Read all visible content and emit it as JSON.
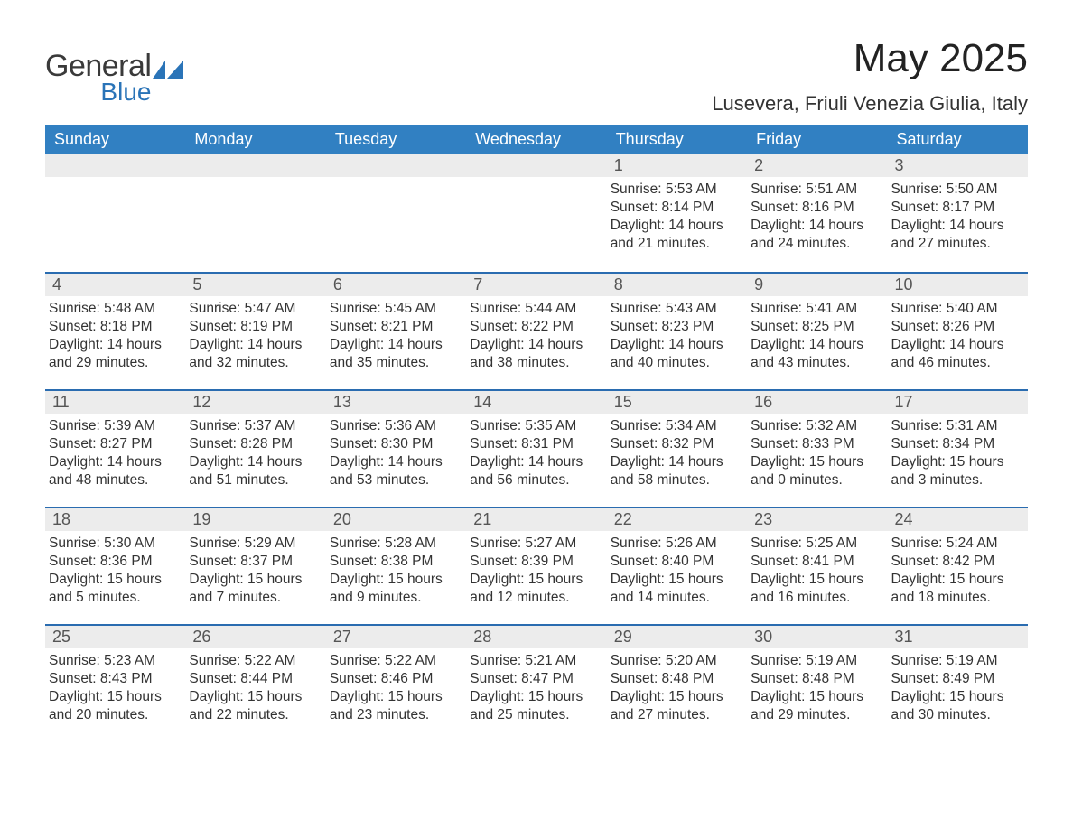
{
  "logo": {
    "word1": "General",
    "word2": "Blue"
  },
  "title": "May 2025",
  "location": "Lusevera, Friuli Venezia Giulia, Italy",
  "colors": {
    "header_bg": "#3180c2",
    "accent": "#2a6cb0",
    "row_gray": "#ececec",
    "text": "#333333"
  },
  "weekdays": [
    "Sunday",
    "Monday",
    "Tuesday",
    "Wednesday",
    "Thursday",
    "Friday",
    "Saturday"
  ],
  "leading_blanks": 4,
  "days": [
    {
      "n": 1,
      "sunrise": "5:53 AM",
      "sunset": "8:14 PM",
      "daylight": "14 hours and 21 minutes."
    },
    {
      "n": 2,
      "sunrise": "5:51 AM",
      "sunset": "8:16 PM",
      "daylight": "14 hours and 24 minutes."
    },
    {
      "n": 3,
      "sunrise": "5:50 AM",
      "sunset": "8:17 PM",
      "daylight": "14 hours and 27 minutes."
    },
    {
      "n": 4,
      "sunrise": "5:48 AM",
      "sunset": "8:18 PM",
      "daylight": "14 hours and 29 minutes."
    },
    {
      "n": 5,
      "sunrise": "5:47 AM",
      "sunset": "8:19 PM",
      "daylight": "14 hours and 32 minutes."
    },
    {
      "n": 6,
      "sunrise": "5:45 AM",
      "sunset": "8:21 PM",
      "daylight": "14 hours and 35 minutes."
    },
    {
      "n": 7,
      "sunrise": "5:44 AM",
      "sunset": "8:22 PM",
      "daylight": "14 hours and 38 minutes."
    },
    {
      "n": 8,
      "sunrise": "5:43 AM",
      "sunset": "8:23 PM",
      "daylight": "14 hours and 40 minutes."
    },
    {
      "n": 9,
      "sunrise": "5:41 AM",
      "sunset": "8:25 PM",
      "daylight": "14 hours and 43 minutes."
    },
    {
      "n": 10,
      "sunrise": "5:40 AM",
      "sunset": "8:26 PM",
      "daylight": "14 hours and 46 minutes."
    },
    {
      "n": 11,
      "sunrise": "5:39 AM",
      "sunset": "8:27 PM",
      "daylight": "14 hours and 48 minutes."
    },
    {
      "n": 12,
      "sunrise": "5:37 AM",
      "sunset": "8:28 PM",
      "daylight": "14 hours and 51 minutes."
    },
    {
      "n": 13,
      "sunrise": "5:36 AM",
      "sunset": "8:30 PM",
      "daylight": "14 hours and 53 minutes."
    },
    {
      "n": 14,
      "sunrise": "5:35 AM",
      "sunset": "8:31 PM",
      "daylight": "14 hours and 56 minutes."
    },
    {
      "n": 15,
      "sunrise": "5:34 AM",
      "sunset": "8:32 PM",
      "daylight": "14 hours and 58 minutes."
    },
    {
      "n": 16,
      "sunrise": "5:32 AM",
      "sunset": "8:33 PM",
      "daylight": "15 hours and 0 minutes."
    },
    {
      "n": 17,
      "sunrise": "5:31 AM",
      "sunset": "8:34 PM",
      "daylight": "15 hours and 3 minutes."
    },
    {
      "n": 18,
      "sunrise": "5:30 AM",
      "sunset": "8:36 PM",
      "daylight": "15 hours and 5 minutes."
    },
    {
      "n": 19,
      "sunrise": "5:29 AM",
      "sunset": "8:37 PM",
      "daylight": "15 hours and 7 minutes."
    },
    {
      "n": 20,
      "sunrise": "5:28 AM",
      "sunset": "8:38 PM",
      "daylight": "15 hours and 9 minutes."
    },
    {
      "n": 21,
      "sunrise": "5:27 AM",
      "sunset": "8:39 PM",
      "daylight": "15 hours and 12 minutes."
    },
    {
      "n": 22,
      "sunrise": "5:26 AM",
      "sunset": "8:40 PM",
      "daylight": "15 hours and 14 minutes."
    },
    {
      "n": 23,
      "sunrise": "5:25 AM",
      "sunset": "8:41 PM",
      "daylight": "15 hours and 16 minutes."
    },
    {
      "n": 24,
      "sunrise": "5:24 AM",
      "sunset": "8:42 PM",
      "daylight": "15 hours and 18 minutes."
    },
    {
      "n": 25,
      "sunrise": "5:23 AM",
      "sunset": "8:43 PM",
      "daylight": "15 hours and 20 minutes."
    },
    {
      "n": 26,
      "sunrise": "5:22 AM",
      "sunset": "8:44 PM",
      "daylight": "15 hours and 22 minutes."
    },
    {
      "n": 27,
      "sunrise": "5:22 AM",
      "sunset": "8:46 PM",
      "daylight": "15 hours and 23 minutes."
    },
    {
      "n": 28,
      "sunrise": "5:21 AM",
      "sunset": "8:47 PM",
      "daylight": "15 hours and 25 minutes."
    },
    {
      "n": 29,
      "sunrise": "5:20 AM",
      "sunset": "8:48 PM",
      "daylight": "15 hours and 27 minutes."
    },
    {
      "n": 30,
      "sunrise": "5:19 AM",
      "sunset": "8:48 PM",
      "daylight": "15 hours and 29 minutes."
    },
    {
      "n": 31,
      "sunrise": "5:19 AM",
      "sunset": "8:49 PM",
      "daylight": "15 hours and 30 minutes."
    }
  ],
  "labels": {
    "sunrise": "Sunrise:",
    "sunset": "Sunset:",
    "daylight": "Daylight:"
  }
}
